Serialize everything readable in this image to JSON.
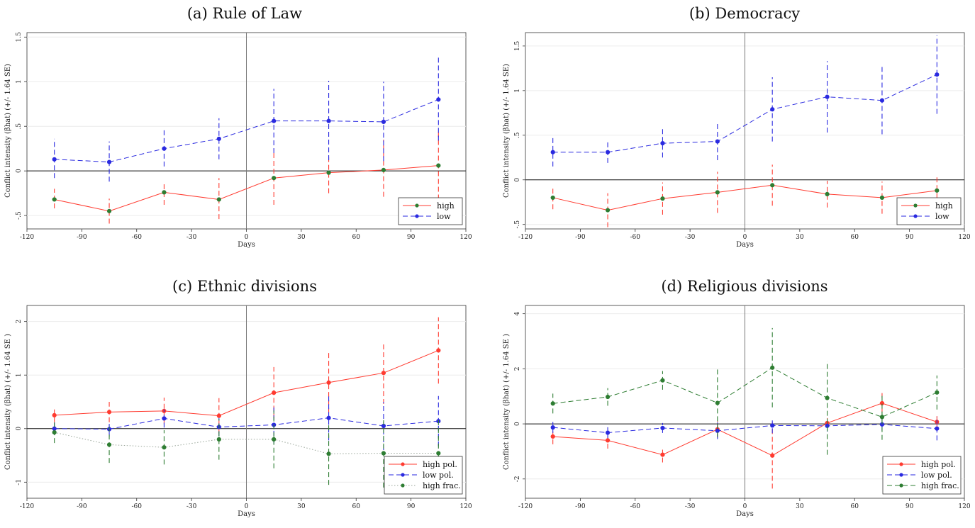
{
  "colors": {
    "red": "#ff3b30",
    "blue": "#2a2ae0",
    "green": "#2e7d32"
  },
  "chart_data": [
    {
      "type": "line",
      "title": "(a) Rule of Law",
      "xlabel": "Days",
      "ylabel": "Conflict intensity (βhat) (+/- 1.64 SE)",
      "xlim": [
        -120,
        120
      ],
      "ylim": [
        -0.65,
        1.55
      ],
      "xticks": [
        -120,
        -90,
        -60,
        -30,
        0,
        30,
        60,
        90,
        120
      ],
      "yticks": [
        -0.5,
        0,
        0.5,
        1,
        1.5
      ],
      "ytick_labels": [
        "-.5",
        "0",
        ".5",
        "1",
        "1.5"
      ],
      "grid": true,
      "legend_position": "bottom-right",
      "x": [
        -105,
        -75,
        -45,
        -15,
        15,
        45,
        75,
        105
      ],
      "series": [
        {
          "name": "high",
          "color": "red",
          "marker": "green",
          "style": "solid",
          "values": [
            -0.32,
            -0.45,
            -0.24,
            -0.32,
            -0.08,
            -0.02,
            0.01,
            0.06
          ],
          "lower": [
            -0.42,
            -0.59,
            -0.38,
            -0.54,
            -0.38,
            -0.25,
            -0.29,
            -0.32
          ],
          "upper": [
            -0.2,
            -0.31,
            -0.12,
            -0.08,
            0.24,
            0.18,
            0.35,
            0.46
          ]
        },
        {
          "name": "low",
          "color": "blue",
          "marker": "blue",
          "style": "dashed",
          "values": [
            0.13,
            0.1,
            0.25,
            0.36,
            0.56,
            0.56,
            0.55,
            0.8
          ],
          "lower": [
            -0.08,
            -0.12,
            0.05,
            0.13,
            0.2,
            0.12,
            0.11,
            0.34
          ],
          "upper": [
            0.36,
            0.33,
            0.46,
            0.59,
            0.92,
            1.01,
            1.0,
            1.27
          ]
        }
      ]
    },
    {
      "type": "line",
      "title": "(b) Democracy",
      "xlabel": "Days",
      "ylabel": "Conflict intensity (βhat) (+/- 1.64 SE)",
      "xlim": [
        -120,
        120
      ],
      "ylim": [
        -0.55,
        1.65
      ],
      "xticks": [
        -120,
        -90,
        -60,
        -30,
        0,
        30,
        60,
        90,
        120
      ],
      "yticks": [
        -0.5,
        0,
        0.5,
        1,
        1.5
      ],
      "ytick_labels": [
        "-.5",
        "0",
        ".5",
        "1",
        "1.5"
      ],
      "grid": true,
      "legend_position": "bottom-right",
      "x": [
        -105,
        -75,
        -45,
        -15,
        15,
        45,
        75,
        105
      ],
      "series": [
        {
          "name": "high",
          "color": "red",
          "marker": "green",
          "style": "solid",
          "values": [
            -0.2,
            -0.34,
            -0.21,
            -0.14,
            -0.06,
            -0.16,
            -0.2,
            -0.12
          ],
          "lower": [
            -0.33,
            -0.53,
            -0.39,
            -0.37,
            -0.29,
            -0.31,
            -0.38,
            -0.29
          ],
          "upper": [
            -0.07,
            -0.15,
            -0.03,
            0.09,
            0.17,
            -0.01,
            -0.02,
            0.05
          ]
        },
        {
          "name": "low",
          "color": "blue",
          "marker": "blue",
          "style": "dashed",
          "values": [
            0.31,
            0.31,
            0.41,
            0.43,
            0.79,
            0.93,
            0.89,
            1.18
          ],
          "lower": [
            0.15,
            0.19,
            0.25,
            0.22,
            0.43,
            0.53,
            0.51,
            0.74
          ],
          "upper": [
            0.47,
            0.43,
            0.57,
            0.64,
            1.15,
            1.33,
            1.27,
            1.62
          ]
        }
      ]
    },
    {
      "type": "line",
      "title": "(c) Ethnic divisions",
      "xlabel": "Days",
      "ylabel": "Conflict intensity (βhat) (+/- 1.64 SE )",
      "xlim": [
        -120,
        120
      ],
      "ylim": [
        -1.3,
        2.3
      ],
      "xticks": [
        -120,
        -90,
        -60,
        -30,
        0,
        30,
        60,
        90,
        120
      ],
      "yticks": [
        -1,
        0,
        1,
        2
      ],
      "ytick_labels": [
        "-1",
        "0",
        "1",
        "2"
      ],
      "grid": true,
      "legend_position": "bottom-right",
      "x": [
        -105,
        -75,
        -45,
        -15,
        15,
        45,
        75,
        105
      ],
      "series": [
        {
          "name": "high pol.",
          "color": "red",
          "marker": "red",
          "style": "solid",
          "values": [
            0.25,
            0.31,
            0.33,
            0.24,
            0.67,
            0.86,
            1.04,
            1.46
          ],
          "lower": [
            0.12,
            0.12,
            0.08,
            -0.09,
            0.19,
            0.3,
            0.46,
            0.84
          ],
          "upper": [
            0.38,
            0.5,
            0.58,
            0.57,
            1.15,
            1.42,
            1.62,
            2.08
          ]
        },
        {
          "name": "low pol.",
          "color": "blue",
          "marker": "blue",
          "style": "dashed",
          "values": [
            0.0,
            -0.01,
            0.19,
            0.03,
            0.07,
            0.2,
            0.05,
            0.14
          ],
          "lower": [
            -0.12,
            -0.15,
            0.02,
            -0.14,
            -0.28,
            -0.22,
            -0.4,
            -0.33
          ],
          "upper": [
            0.12,
            0.13,
            0.36,
            0.2,
            0.42,
            0.62,
            0.5,
            0.61
          ]
        },
        {
          "name": "high frac.",
          "color": "green",
          "marker": "green",
          "style": "dotted",
          "values": [
            -0.07,
            -0.3,
            -0.35,
            -0.2,
            -0.2,
            -0.47,
            -0.46,
            -0.46
          ],
          "lower": [
            -0.27,
            -0.64,
            -0.67,
            -0.58,
            -0.74,
            -1.05,
            -1.1,
            -1.1
          ],
          "upper": [
            0.13,
            0.04,
            -0.03,
            0.18,
            0.34,
            0.11,
            0.18,
            0.18
          ]
        }
      ]
    },
    {
      "type": "line",
      "title": "(d) Religious divisions",
      "xlabel": "Days",
      "ylabel": "Conflict intensity (βhat) (+/- 1.64 SE )",
      "xlim": [
        -120,
        120
      ],
      "ylim": [
        -2.7,
        4.3
      ],
      "xticks": [
        -120,
        -90,
        -60,
        -30,
        0,
        30,
        60,
        90,
        120
      ],
      "yticks": [
        -2,
        0,
        2,
        4
      ],
      "ytick_labels": [
        "-2",
        "0",
        "2",
        "4"
      ],
      "grid": true,
      "legend_position": "bottom-right",
      "x": [
        -105,
        -75,
        -45,
        -15,
        15,
        45,
        75,
        105
      ],
      "series": [
        {
          "name": "high pol.",
          "color": "red",
          "marker": "red",
          "style": "solid",
          "values": [
            -0.46,
            -0.6,
            -1.12,
            -0.2,
            -1.15,
            0.03,
            0.75,
            0.07
          ],
          "lower": [
            -0.74,
            -0.9,
            -1.4,
            -0.5,
            -2.35,
            -0.15,
            0.38,
            -0.18
          ],
          "upper": [
            -0.18,
            -0.3,
            -0.84,
            0.1,
            0.05,
            0.21,
            1.12,
            0.32
          ]
        },
        {
          "name": "low pol.",
          "color": "blue",
          "marker": "blue",
          "style": "dashed",
          "values": [
            -0.13,
            -0.32,
            -0.15,
            -0.25,
            -0.06,
            -0.07,
            -0.02,
            -0.17
          ],
          "lower": [
            -0.33,
            -0.52,
            -0.33,
            -0.55,
            -0.34,
            -0.28,
            -0.25,
            -0.6
          ],
          "upper": [
            0.07,
            -0.12,
            0.03,
            0.05,
            0.22,
            0.14,
            0.21,
            0.26
          ]
        },
        {
          "name": "high frac.",
          "color": "green",
          "marker": "green",
          "style": "dashed",
          "values": [
            0.74,
            0.98,
            1.58,
            0.76,
            2.04,
            0.94,
            0.25,
            1.14
          ],
          "lower": [
            0.38,
            0.66,
            1.24,
            -0.47,
            0.6,
            -1.12,
            -0.58,
            0.52
          ],
          "upper": [
            1.1,
            1.3,
            1.92,
            2.0,
            3.48,
            2.28,
            1.08,
            1.76
          ]
        }
      ]
    }
  ]
}
